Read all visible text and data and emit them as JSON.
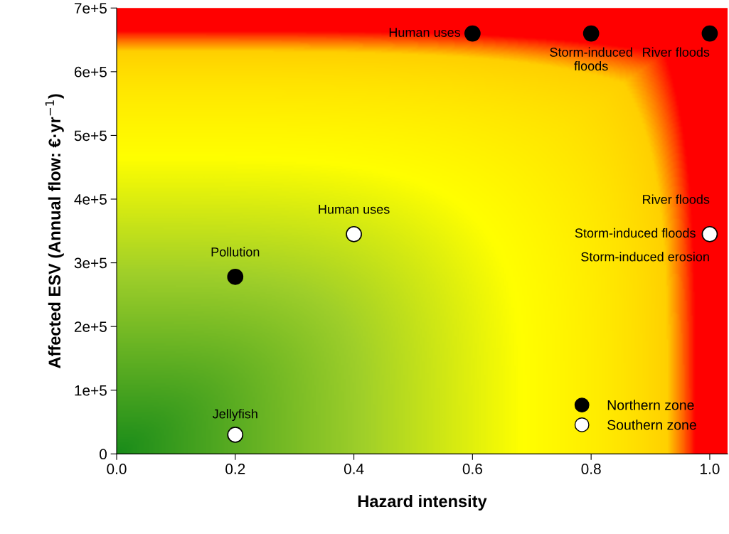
{
  "chart_data": {
    "type": "scatter",
    "xlabel": "Hazard intensity",
    "ylabel": "Affected ESV (Annual flow: €·yr$^{−1}$)",
    "xlim": [
      0,
      1.03
    ],
    "ylim": [
      0,
      700000
    ],
    "xticks": [
      {
        "value": 0,
        "label": "0.0"
      },
      {
        "value": 0.2,
        "label": "0.2"
      },
      {
        "value": 0.4,
        "label": "0.4"
      },
      {
        "value": 0.6,
        "label": "0.6"
      },
      {
        "value": 0.8,
        "label": "0.8"
      },
      {
        "value": 1.0,
        "label": "1.0"
      }
    ],
    "yticks": [
      0,
      {
        "value": 100000,
        "label": "1e+5"
      },
      {
        "value": 200000,
        "label": "2e+5"
      },
      {
        "value": 300000,
        "label": "3e+5"
      },
      {
        "value": 400000,
        "label": "4e+5"
      },
      {
        "value": 500000,
        "label": "5e+5"
      },
      {
        "value": 600000,
        "label": "6e+5"
      },
      {
        "value": 700000,
        "label": "7e+5"
      }
    ],
    "marker": "circle",
    "legend": "bottom right",
    "grid": false,
    "series": [
      {
        "name": "Northern zone",
        "color": "#000000",
        "x": [
          0.2,
          0.6,
          0.8,
          1.0
        ],
        "values": [
          278000,
          660000,
          660000,
          660000
        ]
      },
      {
        "name": "Southern zone",
        "color": "#ffffff",
        "x": [
          0.2,
          0.4,
          1.0
        ],
        "values": [
          30000,
          345000,
          345000
        ]
      }
    ],
    "annotations": [
      {
        "text": "Pollution",
        "x": 0.2,
        "y": 278000
      },
      {
        "text": "Human uses",
        "x": 0.6,
        "y": 660000
      },
      {
        "text": "Storm-induced\nfloods",
        "x": 0.8,
        "y": 660000
      },
      {
        "text": "River floods",
        "x": 1.0,
        "y": 660000
      },
      {
        "text": "Jellyfish",
        "x": 0.2,
        "y": 30000
      },
      {
        "text": "Human uses",
        "x": 0.4,
        "y": 345000
      },
      {
        "text": "River floods",
        "x": 1.0,
        "y": 345000
      },
      {
        "text": "Storm-induced floods",
        "x": 1.0,
        "y": 345000
      },
      {
        "text": "Storm-induced erosion",
        "x": 1.0,
        "y": 345000
      }
    ]
  }
}
